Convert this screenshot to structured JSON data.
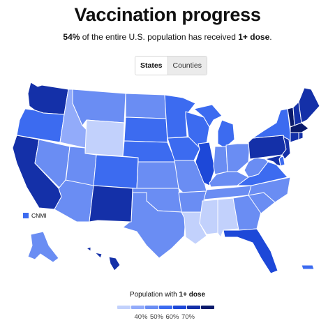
{
  "title": "Vaccination progress",
  "subtitle": {
    "pct": "54%",
    "middle": " of the entire U.S. population has received ",
    "dose": "1+ dose",
    "end": "."
  },
  "toggle": {
    "states_label": "States",
    "counties_label": "Counties"
  },
  "territory": {
    "label": "CNMI",
    "level": 3
  },
  "legend": {
    "title_prefix": "Population with ",
    "title_bold": "1+ dose",
    "ticks": [
      "40%",
      "50%",
      "60%",
      "70%"
    ]
  },
  "colors": {
    "levels": [
      "#c2d1fc",
      "#92abfa",
      "#6a8df3",
      "#3c6bf0",
      "#1d48d8",
      "#1430a8",
      "#0a1a6b"
    ],
    "border": "#ffffff"
  },
  "states": [
    {
      "id": "WA",
      "level": 5
    },
    {
      "id": "OR",
      "level": 3
    },
    {
      "id": "CA",
      "level": 5
    },
    {
      "id": "ID",
      "level": 1
    },
    {
      "id": "NV",
      "level": 2
    },
    {
      "id": "MT",
      "level": 2
    },
    {
      "id": "WY",
      "level": 0
    },
    {
      "id": "UT",
      "level": 2
    },
    {
      "id": "AZ",
      "level": 2
    },
    {
      "id": "CO",
      "level": 3
    },
    {
      "id": "NM",
      "level": 5
    },
    {
      "id": "ND",
      "level": 2
    },
    {
      "id": "SD",
      "level": 3
    },
    {
      "id": "NE",
      "level": 3
    },
    {
      "id": "KS",
      "level": 2
    },
    {
      "id": "OK",
      "level": 2
    },
    {
      "id": "TX",
      "level": 2
    },
    {
      "id": "MN",
      "level": 3
    },
    {
      "id": "IA",
      "level": 3
    },
    {
      "id": "MO",
      "level": 2
    },
    {
      "id": "AR",
      "level": 2
    },
    {
      "id": "LA",
      "level": 0
    },
    {
      "id": "WI",
      "level": 3
    },
    {
      "id": "IL",
      "level": 4
    },
    {
      "id": "MI",
      "level": 3
    },
    {
      "id": "IN",
      "level": 2
    },
    {
      "id": "OH",
      "level": 2
    },
    {
      "id": "KY",
      "level": 2
    },
    {
      "id": "TN",
      "level": 2
    },
    {
      "id": "MS",
      "level": 0
    },
    {
      "id": "AL",
      "level": 0
    },
    {
      "id": "GA",
      "level": 2
    },
    {
      "id": "FL",
      "level": 4
    },
    {
      "id": "SC",
      "level": 2
    },
    {
      "id": "NC",
      "level": 2
    },
    {
      "id": "VA",
      "level": 3
    },
    {
      "id": "WV",
      "level": 2
    },
    {
      "id": "PA",
      "level": 5
    },
    {
      "id": "NY",
      "level": 3
    },
    {
      "id": "NJ",
      "level": 5
    },
    {
      "id": "DE",
      "level": 3
    },
    {
      "id": "MD",
      "level": 5
    },
    {
      "id": "VT",
      "level": 6
    },
    {
      "id": "NH",
      "level": 5
    },
    {
      "id": "ME",
      "level": 5
    },
    {
      "id": "MA",
      "level": 6
    },
    {
      "id": "CT",
      "level": 5
    },
    {
      "id": "RI",
      "level": 5
    },
    {
      "id": "AK",
      "level": 2
    },
    {
      "id": "HI",
      "level": 5
    },
    {
      "id": "PR",
      "level": 3
    }
  ]
}
